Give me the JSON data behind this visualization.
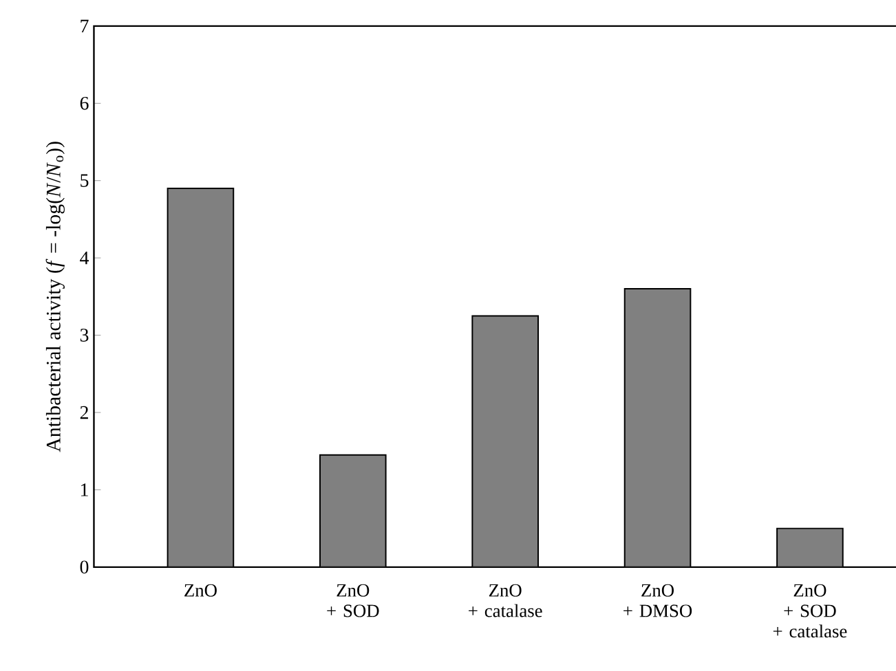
{
  "chart_data": {
    "type": "bar",
    "categories": [
      "ZnO",
      "ZnO + SOD",
      "ZnO + catalase",
      "ZnO + DMSO",
      "ZnO + SOD + catalase"
    ],
    "values": [
      4.9,
      1.45,
      3.25,
      3.6,
      0.5
    ],
    "color": "#808080",
    "ylabel": "Antibacterial activity (*f* = -log(*N*/*N*$_{o}$))",
    "ylim": [
      0,
      7
    ],
    "yticks": [
      0,
      1,
      2,
      3,
      4,
      5,
      6,
      7
    ],
    "grid": false
  }
}
